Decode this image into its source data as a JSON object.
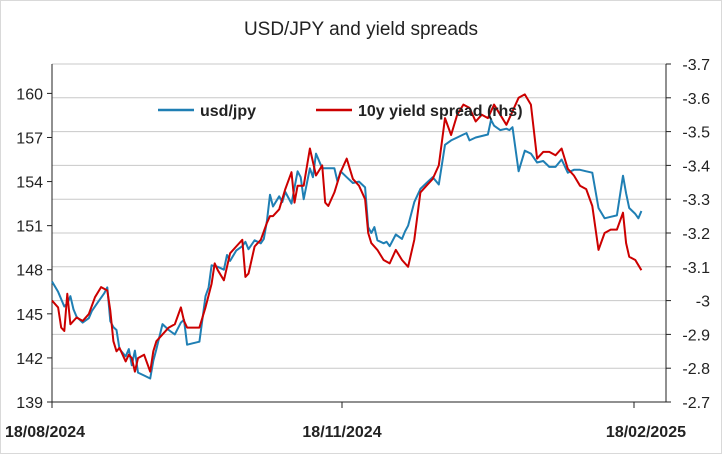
{
  "chart_data": {
    "type": "line",
    "title": "USD/JPY and yield spreads",
    "left_axis": {
      "min": 139,
      "max": 162,
      "ticks": [
        139,
        142,
        145,
        148,
        151,
        154,
        157,
        160
      ]
    },
    "right_axis": {
      "min": -2.7,
      "max": -3.7,
      "ticks": [
        -2.7,
        -2.8,
        -2.9,
        -3,
        -3.1,
        -3.2,
        -3.3,
        -3.4,
        -3.5,
        -3.6,
        -3.7
      ]
    },
    "x_ticks": [
      "18/08/2024",
      "18/11/2024",
      "18/02/2025"
    ],
    "x_range": [
      0,
      200
    ],
    "legend_placement": "top",
    "grid": true,
    "series": [
      {
        "name": "usd/jpy",
        "axis": "left",
        "color": "#1f7fb4",
        "points": [
          [
            0,
            147.2
          ],
          [
            2,
            146.5
          ],
          [
            4,
            145.5
          ],
          [
            5,
            145.7
          ],
          [
            6,
            146.2
          ],
          [
            7,
            145.3
          ],
          [
            8,
            144.8
          ],
          [
            10,
            144.4
          ],
          [
            12,
            144.7
          ],
          [
            13,
            145.2
          ],
          [
            15,
            145.8
          ],
          [
            17,
            146.4
          ],
          [
            18,
            146.8
          ],
          [
            19,
            144.5
          ],
          [
            20,
            144.1
          ],
          [
            21,
            143.9
          ],
          [
            22,
            142.6
          ],
          [
            24,
            142.1
          ],
          [
            25,
            142.6
          ],
          [
            26,
            141.5
          ],
          [
            27,
            142.5
          ],
          [
            28,
            141.0
          ],
          [
            30,
            140.8
          ],
          [
            32,
            140.6
          ],
          [
            33,
            141.8
          ],
          [
            34,
            142.6
          ],
          [
            36,
            144.3
          ],
          [
            38,
            143.9
          ],
          [
            40,
            143.6
          ],
          [
            42,
            144.4
          ],
          [
            43,
            144.6
          ],
          [
            44,
            142.9
          ],
          [
            46,
            143.0
          ],
          [
            48,
            143.1
          ],
          [
            50,
            146.2
          ],
          [
            51,
            146.8
          ],
          [
            52,
            148.3
          ],
          [
            54,
            148.2
          ],
          [
            56,
            148.0
          ],
          [
            57,
            149.0
          ],
          [
            58,
            148.6
          ],
          [
            60,
            149.3
          ],
          [
            62,
            149.6
          ],
          [
            63,
            149.9
          ],
          [
            64,
            149.4
          ],
          [
            66,
            150.0
          ],
          [
            68,
            149.8
          ],
          [
            69,
            150.1
          ],
          [
            70,
            151.3
          ],
          [
            71,
            153.1
          ],
          [
            72,
            152.3
          ],
          [
            74,
            153.0
          ],
          [
            75,
            152.6
          ],
          [
            76,
            153.3
          ],
          [
            78,
            152.5
          ],
          [
            80,
            154.7
          ],
          [
            81,
            154.3
          ],
          [
            82,
            152.8
          ],
          [
            84,
            154.9
          ],
          [
            85,
            154.3
          ],
          [
            86,
            155.9
          ],
          [
            88,
            154.9
          ],
          [
            90,
            154.9
          ],
          [
            92,
            154.9
          ],
          [
            93,
            154.0
          ],
          [
            94,
            154.7
          ],
          [
            96,
            154.3
          ],
          [
            98,
            153.9
          ],
          [
            100,
            154.0
          ],
          [
            102,
            153.6
          ],
          [
            103,
            150.9
          ],
          [
            104,
            150.5
          ],
          [
            105,
            150.9
          ],
          [
            106,
            150.0
          ],
          [
            108,
            149.8
          ],
          [
            109,
            149.9
          ],
          [
            110,
            149.6
          ],
          [
            112,
            150.4
          ],
          [
            114,
            150.1
          ],
          [
            115,
            150.6
          ],
          [
            116,
            151.0
          ],
          [
            118,
            152.6
          ],
          [
            120,
            153.5
          ],
          [
            122,
            153.9
          ],
          [
            124,
            154.3
          ],
          [
            126,
            153.8
          ],
          [
            128,
            156.5
          ],
          [
            130,
            156.8
          ],
          [
            132,
            157.0
          ],
          [
            134,
            157.2
          ],
          [
            135,
            157.3
          ],
          [
            136,
            156.8
          ],
          [
            138,
            157.0
          ],
          [
            140,
            157.1
          ],
          [
            142,
            157.2
          ],
          [
            143,
            158.2
          ],
          [
            144,
            157.8
          ],
          [
            146,
            157.5
          ],
          [
            148,
            157.6
          ],
          [
            149,
            157.5
          ],
          [
            150,
            157.7
          ],
          [
            152,
            154.7
          ],
          [
            154,
            156.1
          ],
          [
            156,
            155.9
          ],
          [
            158,
            155.3
          ],
          [
            160,
            155.4
          ],
          [
            162,
            155.0
          ],
          [
            164,
            155.0
          ],
          [
            166,
            155.5
          ],
          [
            168,
            154.6
          ],
          [
            170,
            154.8
          ],
          [
            172,
            154.8
          ],
          [
            174,
            154.7
          ],
          [
            176,
            154.6
          ],
          [
            178,
            152.2
          ],
          [
            180,
            151.5
          ],
          [
            182,
            151.6
          ],
          [
            184,
            151.7
          ],
          [
            186,
            154.4
          ],
          [
            187,
            153.2
          ],
          [
            188,
            152.2
          ],
          [
            190,
            151.8
          ],
          [
            191,
            151.5
          ],
          [
            192,
            152.0
          ]
        ]
      },
      {
        "name": "10y yield spread (rhs)",
        "axis": "right",
        "color": "#cc0000",
        "points": [
          [
            0,
            -3.0
          ],
          [
            2,
            -2.98
          ],
          [
            3,
            -2.92
          ],
          [
            4,
            -2.91
          ],
          [
            5,
            -3.02
          ],
          [
            6,
            -2.93
          ],
          [
            8,
            -2.95
          ],
          [
            10,
            -2.94
          ],
          [
            12,
            -2.96
          ],
          [
            14,
            -3.01
          ],
          [
            16,
            -3.04
          ],
          [
            18,
            -3.03
          ],
          [
            19,
            -2.97
          ],
          [
            20,
            -2.88
          ],
          [
            21,
            -2.85
          ],
          [
            22,
            -2.86
          ],
          [
            24,
            -2.82
          ],
          [
            25,
            -2.84
          ],
          [
            26,
            -2.83
          ],
          [
            27,
            -2.79
          ],
          [
            28,
            -2.83
          ],
          [
            30,
            -2.84
          ],
          [
            32,
            -2.79
          ],
          [
            33,
            -2.85
          ],
          [
            34,
            -2.88
          ],
          [
            36,
            -2.9
          ],
          [
            38,
            -2.92
          ],
          [
            40,
            -2.93
          ],
          [
            42,
            -2.98
          ],
          [
            43,
            -2.94
          ],
          [
            44,
            -2.92
          ],
          [
            46,
            -2.92
          ],
          [
            48,
            -2.92
          ],
          [
            50,
            -2.98
          ],
          [
            52,
            -3.05
          ],
          [
            53,
            -3.11
          ],
          [
            54,
            -3.09
          ],
          [
            56,
            -3.06
          ],
          [
            57,
            -3.1
          ],
          [
            58,
            -3.14
          ],
          [
            60,
            -3.16
          ],
          [
            62,
            -3.18
          ],
          [
            63,
            -3.07
          ],
          [
            64,
            -3.08
          ],
          [
            66,
            -3.16
          ],
          [
            68,
            -3.18
          ],
          [
            70,
            -3.23
          ],
          [
            71,
            -3.25
          ],
          [
            72,
            -3.25
          ],
          [
            74,
            -3.27
          ],
          [
            76,
            -3.33
          ],
          [
            78,
            -3.38
          ],
          [
            79,
            -3.29
          ],
          [
            80,
            -3.34
          ],
          [
            82,
            -3.34
          ],
          [
            84,
            -3.45
          ],
          [
            86,
            -3.37
          ],
          [
            88,
            -3.4
          ],
          [
            89,
            -3.29
          ],
          [
            90,
            -3.28
          ],
          [
            92,
            -3.32
          ],
          [
            94,
            -3.38
          ],
          [
            96,
            -3.42
          ],
          [
            98,
            -3.36
          ],
          [
            100,
            -3.34
          ],
          [
            102,
            -3.3
          ],
          [
            103,
            -3.2
          ],
          [
            104,
            -3.17
          ],
          [
            106,
            -3.15
          ],
          [
            108,
            -3.12
          ],
          [
            110,
            -3.11
          ],
          [
            112,
            -3.15
          ],
          [
            114,
            -3.12
          ],
          [
            116,
            -3.1
          ],
          [
            118,
            -3.18
          ],
          [
            120,
            -3.32
          ],
          [
            122,
            -3.34
          ],
          [
            124,
            -3.36
          ],
          [
            126,
            -3.4
          ],
          [
            128,
            -3.54
          ],
          [
            130,
            -3.49
          ],
          [
            132,
            -3.55
          ],
          [
            134,
            -3.58
          ],
          [
            136,
            -3.57
          ],
          [
            138,
            -3.53
          ],
          [
            140,
            -3.55
          ],
          [
            142,
            -3.54
          ],
          [
            144,
            -3.58
          ],
          [
            146,
            -3.55
          ],
          [
            148,
            -3.52
          ],
          [
            150,
            -3.56
          ],
          [
            152,
            -3.6
          ],
          [
            154,
            -3.61
          ],
          [
            156,
            -3.58
          ],
          [
            157,
            -3.5
          ],
          [
            158,
            -3.42
          ],
          [
            160,
            -3.44
          ],
          [
            162,
            -3.44
          ],
          [
            164,
            -3.43
          ],
          [
            166,
            -3.45
          ],
          [
            168,
            -3.39
          ],
          [
            170,
            -3.37
          ],
          [
            172,
            -3.34
          ],
          [
            174,
            -3.33
          ],
          [
            176,
            -3.28
          ],
          [
            178,
            -3.15
          ],
          [
            180,
            -3.2
          ],
          [
            182,
            -3.21
          ],
          [
            184,
            -3.21
          ],
          [
            186,
            -3.26
          ],
          [
            187,
            -3.17
          ],
          [
            188,
            -3.13
          ],
          [
            190,
            -3.12
          ],
          [
            192,
            -3.09
          ]
        ]
      }
    ]
  }
}
